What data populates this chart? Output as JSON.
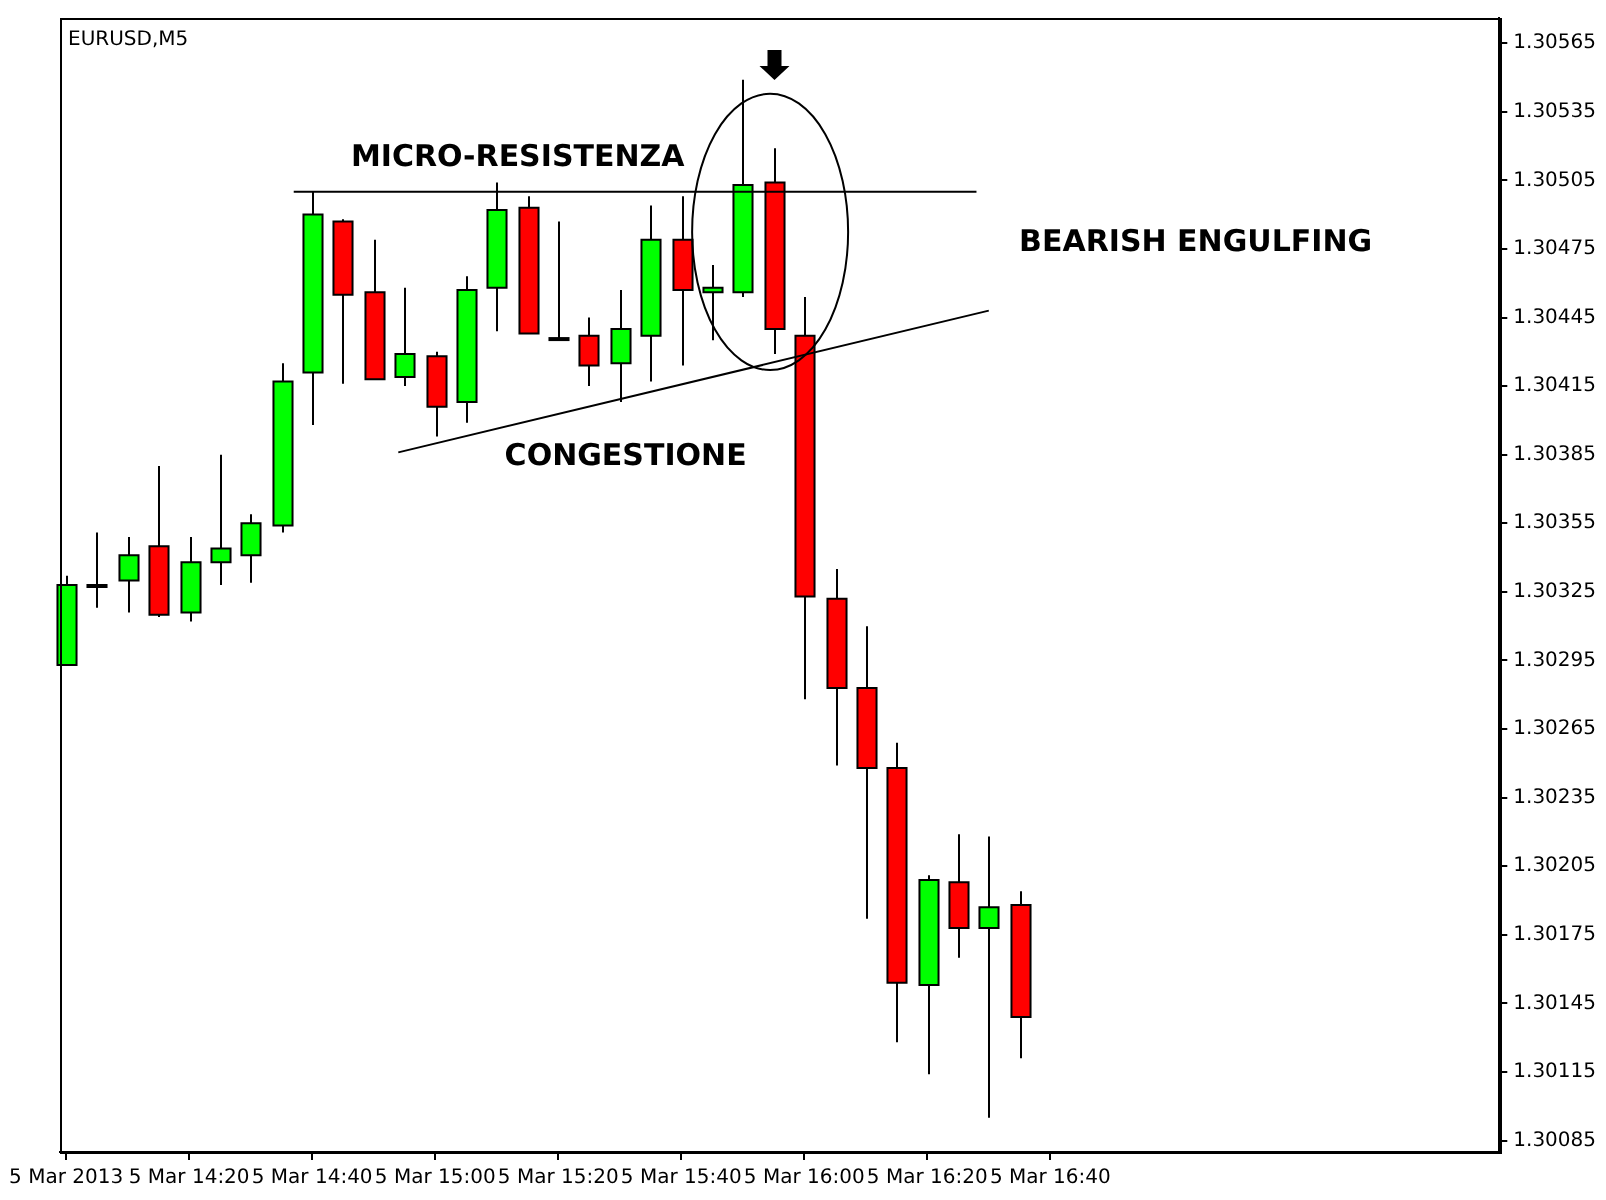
{
  "chart_data": {
    "type": "candlestick",
    "title": "EURUSD,M5",
    "x": [
      "2013-03-05T14:00",
      "2013-03-05T14:05",
      "2013-03-05T14:10",
      "2013-03-05T14:15",
      "2013-03-05T14:20",
      "2013-03-05T14:25",
      "2013-03-05T14:30",
      "2013-03-05T14:35",
      "2013-03-05T14:40",
      "2013-03-05T14:45",
      "2013-03-05T14:50",
      "2013-03-05T14:55",
      "2013-03-05T15:00",
      "2013-03-05T15:05",
      "2013-03-05T15:10",
      "2013-03-05T15:15",
      "2013-03-05T15:20",
      "2013-03-05T15:25",
      "2013-03-05T15:30",
      "2013-03-05T15:35",
      "2013-03-05T15:40",
      "2013-03-05T15:45",
      "2013-03-05T15:50",
      "2013-03-05T15:55",
      "2013-03-05T16:00",
      "2013-03-05T16:05",
      "2013-03-05T16:10",
      "2013-03-05T16:15",
      "2013-03-05T16:20",
      "2013-03-05T16:25",
      "2013-03-05T16:30",
      "2013-03-05T16:35"
    ],
    "ohlc": [
      [
        1.30293,
        1.30332,
        1.30293,
        1.30328
      ],
      [
        1.30328,
        1.30351,
        1.30318,
        1.30328
      ],
      [
        1.3033,
        1.30349,
        1.30316,
        1.30341
      ],
      [
        1.30345,
        1.3038,
        1.30314,
        1.30315
      ],
      [
        1.30316,
        1.30349,
        1.30312,
        1.30338
      ],
      [
        1.30338,
        1.30385,
        1.30328,
        1.30344
      ],
      [
        1.30341,
        1.30359,
        1.30329,
        1.30355
      ],
      [
        1.30354,
        1.30425,
        1.30351,
        1.30417
      ],
      [
        1.30421,
        1.305,
        1.30398,
        1.3049
      ],
      [
        1.30487,
        1.30488,
        1.30416,
        1.30455
      ],
      [
        1.30456,
        1.30479,
        1.30418,
        1.30418
      ],
      [
        1.30419,
        1.30458,
        1.30415,
        1.30429
      ],
      [
        1.30428,
        1.3043,
        1.30393,
        1.30406
      ],
      [
        1.30408,
        1.30463,
        1.30399,
        1.30457
      ],
      [
        1.30458,
        1.30504,
        1.30439,
        1.30492
      ],
      [
        1.30493,
        1.30498,
        1.30438,
        1.30438
      ],
      [
        1.30436,
        1.30487,
        1.30436,
        1.30436
      ],
      [
        1.30437,
        1.30445,
        1.30415,
        1.30424
      ],
      [
        1.30425,
        1.30457,
        1.30408,
        1.3044
      ],
      [
        1.30437,
        1.30494,
        1.30417,
        1.30479
      ],
      [
        1.30479,
        1.30498,
        1.30424,
        1.30457
      ],
      [
        1.30456,
        1.30468,
        1.30435,
        1.30458
      ],
      [
        1.30456,
        1.30549,
        1.30454,
        1.30503
      ],
      [
        1.30504,
        1.30519,
        1.30429,
        1.3044
      ],
      [
        1.30437,
        1.30454,
        1.30278,
        1.30323
      ],
      [
        1.30322,
        1.30335,
        1.30249,
        1.30283
      ],
      [
        1.30283,
        1.3031,
        1.30182,
        1.30248
      ],
      [
        1.30248,
        1.30259,
        1.30128,
        1.30154
      ],
      [
        1.30153,
        1.30201,
        1.30114,
        1.30199
      ],
      [
        1.30198,
        1.30219,
        1.30165,
        1.30178
      ],
      [
        1.30178,
        1.30218,
        1.30095,
        1.30187
      ],
      [
        1.30188,
        1.30194,
        1.30121,
        1.30139
      ]
    ],
    "colors": [
      "#00ff00",
      "#00ff00",
      "#00ff00",
      "#ff0000",
      "#00ff00",
      "#00ff00",
      "#00ff00",
      "#00ff00",
      "#00ff00",
      "#ff0000",
      "#ff0000",
      "#00ff00",
      "#ff0000",
      "#00ff00",
      "#00ff00",
      "#ff0000",
      "#00ff00",
      "#ff0000",
      "#00ff00",
      "#00ff00",
      "#ff0000",
      "#00ff00",
      "#00ff00",
      "#ff0000",
      "#ff0000",
      "#ff0000",
      "#ff0000",
      "#ff0000",
      "#00ff00",
      "#ff0000",
      "#00ff00",
      "#ff0000"
    ],
    "series": [
      {
        "type": "line",
        "color": "#000000",
        "x": [
          "2013-03-05T14:37",
          "2013-03-05T16:28"
        ],
        "values": [
          1.305,
          1.305
        ]
      },
      {
        "type": "line",
        "color": "#000000",
        "x": [
          "2013-03-05T14:54",
          "2013-03-05T16:30"
        ],
        "values": [
          1.30386,
          1.30448
        ]
      }
    ],
    "annotations": [
      "MICRO-RESISTENZA",
      "CONGESTIONE",
      "BEARISH ENGULFING"
    ],
    "xlim": [
      "2013-03-05T13:59",
      "2013-03-05T17:53"
    ],
    "xticks": [
      {
        "value": "2013-03-05T14:00",
        "label": "5 Mar 2013"
      },
      {
        "value": "2013-03-05T14:20",
        "label": "5 Mar 14:20"
      },
      {
        "value": "2013-03-05T14:40",
        "label": "5 Mar 14:40"
      },
      {
        "value": "2013-03-05T15:00",
        "label": "5 Mar 15:00"
      },
      {
        "value": "2013-03-05T15:20",
        "label": "5 Mar 15:20"
      },
      {
        "value": "2013-03-05T15:40",
        "label": "5 Mar 15:40"
      },
      {
        "value": "2013-03-05T16:00",
        "label": "5 Mar 16:00"
      },
      {
        "value": "2013-03-05T16:20",
        "label": "5 Mar 16:20"
      },
      {
        "value": "2013-03-05T16:40",
        "label": "5 Mar 16:40"
      }
    ],
    "ylim": [
      1.3008,
      1.30576
    ],
    "yticks": [
      1.30085,
      1.30115,
      1.30145,
      1.30175,
      1.30205,
      1.30235,
      1.30265,
      1.30295,
      1.30325,
      1.30355,
      1.30385,
      1.30415,
      1.30445,
      1.30475,
      1.30505,
      1.30535,
      1.30565
    ],
    "grid": false,
    "legend": false
  }
}
